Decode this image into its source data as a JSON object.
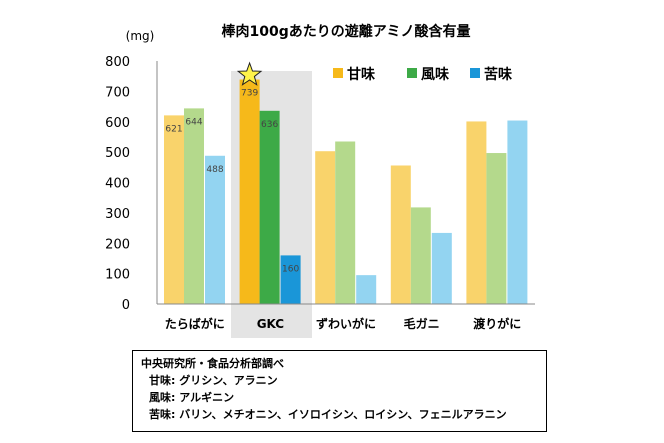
{
  "chart_data": {
    "type": "bar",
    "title": "棒肉100gあたりの遊離アミノ酸含有量",
    "unit_label": "(mg)",
    "ylim": [
      0,
      800
    ],
    "yticks": [
      0,
      100,
      200,
      300,
      400,
      500,
      600,
      700,
      800
    ],
    "grid": false,
    "legend_position": "top-right",
    "categories": [
      "たらばがに",
      "GKC",
      "ずわいがに",
      "毛ガニ",
      "渡りがに"
    ],
    "highlight_category": "GKC",
    "series": [
      {
        "name": "甘味",
        "values": [
          621,
          739,
          503,
          456,
          601
        ],
        "color": "#f9d36b",
        "highlight_color": "#f6b91a"
      },
      {
        "name": "風味",
        "values": [
          644,
          636,
          535,
          318,
          497
        ],
        "color": "#b4d98c",
        "highlight_color": "#3daa47"
      },
      {
        "name": "苦味",
        "values": [
          488,
          160,
          95,
          234,
          604
        ],
        "color": "#93d4f1",
        "highlight_color": "#1a96d8"
      }
    ],
    "data_labels": [
      {
        "category": "たらばがに",
        "series": "甘味",
        "text": "621"
      },
      {
        "category": "たらばがに",
        "series": "風味",
        "text": "644"
      },
      {
        "category": "たらばがに",
        "series": "苦味",
        "text": "488"
      },
      {
        "category": "GKC",
        "series": "甘味",
        "text": "739"
      },
      {
        "category": "GKC",
        "series": "風味",
        "text": "636"
      },
      {
        "category": "GKC",
        "series": "苦味",
        "text": "160"
      }
    ]
  },
  "note": {
    "header": "中央研究所・食品分析部調べ",
    "lines": [
      "甘味:  グリシン、アラニン",
      "風味:  アルギニン",
      "苦味:  バリン、メチオニン、イソロイシン、ロイシン、フェニルアラニン"
    ]
  }
}
